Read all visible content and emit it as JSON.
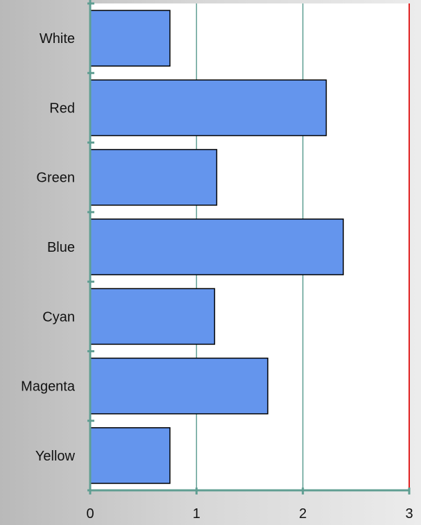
{
  "chart_data": {
    "type": "bar",
    "orientation": "horizontal",
    "categories": [
      "White",
      "Red",
      "Green",
      "Blue",
      "Cyan",
      "Magenta",
      "Yellow"
    ],
    "values": [
      0.75,
      2.22,
      1.19,
      2.38,
      1.17,
      1.67,
      0.75
    ],
    "xticks": [
      "0",
      "1",
      "2",
      "3"
    ],
    "xlim": [
      0,
      3
    ],
    "grid": true,
    "reference_line": {
      "value": 3,
      "color": "#e02020"
    },
    "colors": {
      "bar_fill": "#6495ed",
      "bar_stroke": "#000000",
      "axis": "#5f9e92",
      "grid": "#5f9e92",
      "plot_background": "#ffffff"
    }
  }
}
